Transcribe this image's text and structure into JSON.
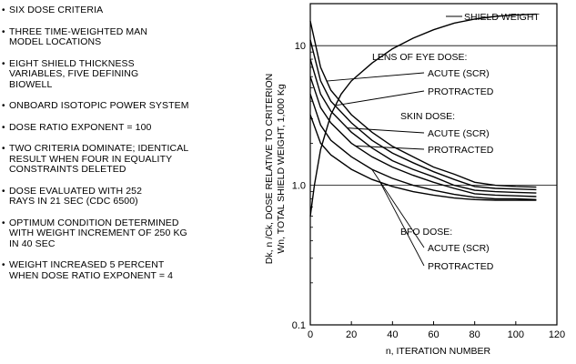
{
  "notes": [
    "SIX DOSE CRITERIA",
    "THREE TIME-WEIGHTED MAN MODEL LOCATIONS",
    "EIGHT SHIELD THICKNESS VARIABLES, FIVE DEFINING BIOWELL",
    "ONBOARD ISOTOPIC POWER SYSTEM",
    "DOSE RATIO EXPONENT = 100",
    "TWO CRITERIA DOMINATE; IDENTICAL RESULT WHEN FOUR IN EQUALITY CONSTRAINTS DELETED",
    "DOSE EVALUATED WITH 252 RAYS IN 21 SEC (CDC 6500)",
    "OPTIMUM CONDITION DETERMINED WITH WEIGHT INCREMENT OF 250 kg IN 40 SEC",
    "WEIGHT INCREASED 5 PERCENT WHEN DOSE RATIO EXPONENT = 4"
  ],
  "chart_data": {
    "type": "line",
    "xlabel": "n, ITERATION NUMBER",
    "ylabel_line1": "Dk, n /Ck, DOSE RELATIVE TO CRITERION",
    "ylabel_line2": "Wn, TOTAL SHIELD WEIGHT, 1,000 Kg",
    "xlim": [
      0,
      120
    ],
    "ylim": [
      0.1,
      20
    ],
    "yscale": "log",
    "grid": "horizontal at 1.0 and 10",
    "x_ticks": [
      "0",
      "20",
      "40",
      "60",
      "80",
      "100",
      "120"
    ],
    "y_ticks": [
      "0.1",
      "1.0",
      "10"
    ],
    "group_labels": {
      "lens": "LENS OF EYE DOSE:",
      "skin": "SKIN DOSE:",
      "bfo": "BFO DOSE:"
    },
    "series": [
      {
        "name": "SHIELD WEIGHT",
        "x": [
          0,
          2,
          5,
          10,
          15,
          20,
          30,
          40,
          50,
          60,
          70,
          80,
          90,
          100,
          110
        ],
        "y": [
          0.6,
          1.0,
          1.8,
          3.2,
          4.5,
          5.6,
          7.5,
          9.5,
          11.3,
          13.0,
          14.5,
          15.5,
          16.2,
          16.6,
          16.8
        ]
      },
      {
        "name": "ACUTE (SCR)",
        "group": "lens",
        "x": [
          0,
          5,
          10,
          20,
          30,
          40,
          50,
          60,
          70,
          80,
          90,
          100,
          110
        ],
        "y": [
          15,
          7.0,
          4.8,
          3.2,
          2.4,
          1.9,
          1.6,
          1.35,
          1.2,
          1.05,
          1.0,
          0.98,
          0.97
        ]
      },
      {
        "name": "PROTRACTED",
        "group": "lens",
        "x": [
          0,
          5,
          10,
          20,
          30,
          40,
          50,
          60,
          70,
          80,
          90,
          100,
          110
        ],
        "y": [
          11,
          5.6,
          4.0,
          2.8,
          2.1,
          1.7,
          1.45,
          1.25,
          1.1,
          0.98,
          0.95,
          0.94,
          0.93
        ]
      },
      {
        "name": "ACUTE (SCR)",
        "group": "skin",
        "x": [
          0,
          5,
          10,
          20,
          30,
          40,
          50,
          60,
          70,
          80,
          90,
          100,
          110
        ],
        "y": [
          8,
          4.5,
          3.4,
          2.4,
          1.85,
          1.5,
          1.3,
          1.15,
          1.0,
          0.92,
          0.9,
          0.89,
          0.88
        ]
      },
      {
        "name": "PROTRACTED",
        "group": "skin",
        "x": [
          0,
          5,
          10,
          20,
          30,
          40,
          50,
          60,
          70,
          80,
          90,
          100,
          110
        ],
        "y": [
          6,
          3.6,
          2.8,
          2.0,
          1.6,
          1.35,
          1.18,
          1.05,
          0.95,
          0.87,
          0.85,
          0.84,
          0.83
        ]
      },
      {
        "name": "ACUTE (SCR)",
        "group": "bfo",
        "x": [
          0,
          5,
          10,
          20,
          30,
          40,
          50,
          60,
          70,
          80,
          90,
          100,
          110
        ],
        "y": [
          4.5,
          2.7,
          2.1,
          1.6,
          1.3,
          1.12,
          1.0,
          0.92,
          0.86,
          0.82,
          0.8,
          0.8,
          0.79
        ]
      },
      {
        "name": "PROTRACTED",
        "group": "bfo",
        "x": [
          0,
          5,
          10,
          20,
          30,
          40,
          50,
          60,
          70,
          80,
          90,
          100,
          110
        ],
        "y": [
          3.2,
          2.0,
          1.65,
          1.3,
          1.1,
          0.98,
          0.9,
          0.85,
          0.81,
          0.79,
          0.78,
          0.78,
          0.78
        ]
      }
    ]
  }
}
